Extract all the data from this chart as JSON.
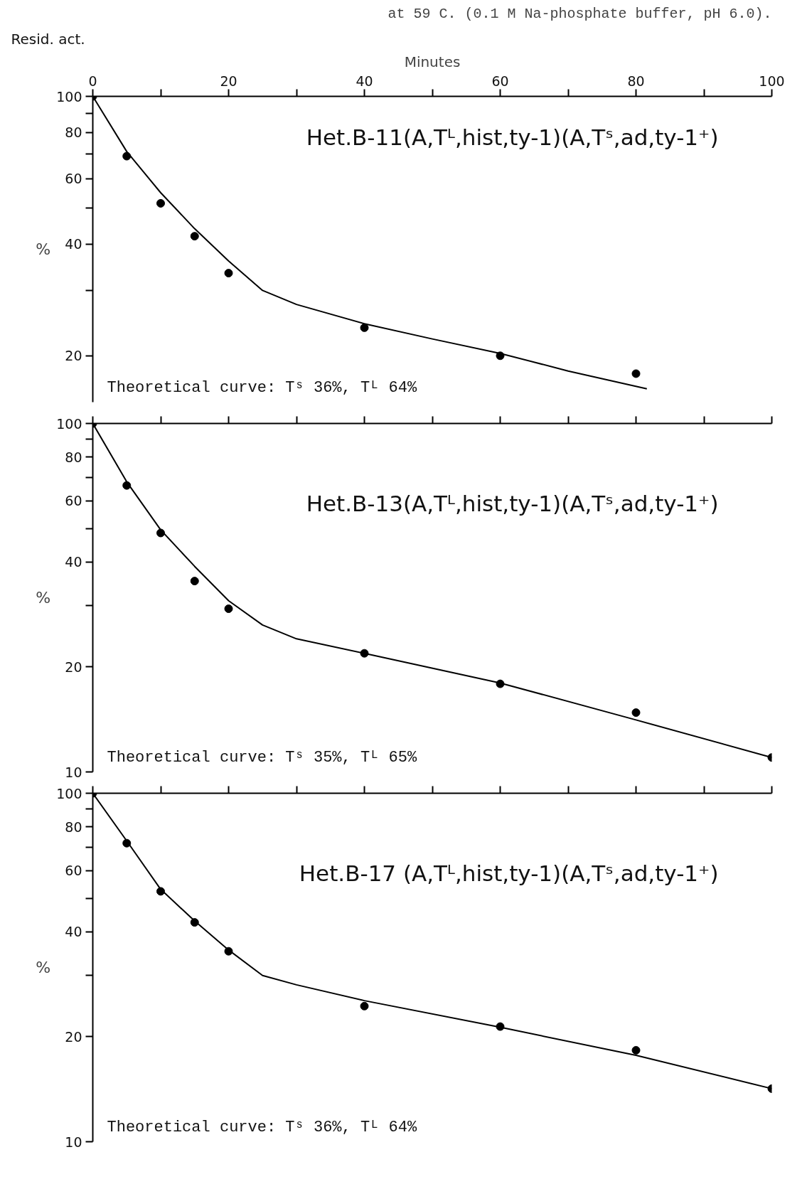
{
  "chart_data": [
    {
      "type": "scatter",
      "title": "at 59 C. (0.1 M Na-phosphate buffer, pH 6.0).",
      "xlabel": "Minutes",
      "ylabel": "%",
      "log": "y",
      "grid": false,
      "xlim": [
        0,
        100
      ],
      "xticks": [
        0,
        {
          "value": 10,
          "label": null
        },
        20,
        {
          "value": 30,
          "label": null
        },
        40,
        {
          "value": 50,
          "label": null
        },
        60,
        {
          "value": 70,
          "label": null
        },
        80,
        {
          "value": 90,
          "label": null
        },
        100
      ],
      "ylim": [
        15,
        100
      ],
      "yticks": [
        100,
        {
          "value": 90,
          "label": null
        },
        80,
        {
          "value": 70,
          "label": null
        },
        60,
        {
          "value": 50,
          "label": null
        },
        40,
        {
          "value": 30,
          "label": null
        },
        20
      ],
      "series": [
        {
          "type": "scatter",
          "marker": "circle",
          "color": "#000000",
          "x": [
            0,
            5,
            10,
            15,
            20,
            40,
            60,
            80
          ],
          "values": [
            100,
            69,
            51.5,
            42,
            33.4,
            23.8,
            20,
            17.9
          ]
        },
        {
          "type": "line",
          "marker": "none",
          "color": "#000000",
          "x": [
            0,
            5,
            10,
            15,
            20,
            25,
            30,
            40,
            50,
            60,
            70,
            81.6
          ],
          "values": [
            100,
            71,
            55,
            44,
            36,
            30,
            27.5,
            24.4,
            22.2,
            20.3,
            18.2,
            16.3
          ]
        }
      ],
      "annotations": [
        "Resid. act.",
        "Het.B-11(A,Tᴸ,hist,ty-1)(A,Tˢ,ad,ty-1⁺)",
        "Theoretical curve: Tˢ 36%, Tᴸ 64%"
      ]
    },
    {
      "type": "scatter",
      "ylabel": "%",
      "log": "y",
      "grid": false,
      "tick_labels": "y",
      "xlim": [
        0,
        100
      ],
      "xticks": [
        {
          "value": 0,
          "label": null
        },
        {
          "value": 10,
          "label": null
        },
        {
          "value": 20,
          "label": null
        },
        {
          "value": 30,
          "label": null
        },
        {
          "value": 40,
          "label": null
        },
        {
          "value": 50,
          "label": null
        },
        {
          "value": 60,
          "label": null
        },
        {
          "value": 70,
          "label": null
        },
        {
          "value": 80,
          "label": null
        },
        {
          "value": 90,
          "label": null
        },
        {
          "value": 100,
          "label": null
        }
      ],
      "ylim": [
        10,
        100
      ],
      "yticks": [
        100,
        {
          "value": 90,
          "label": null
        },
        80,
        {
          "value": 70,
          "label": null
        },
        60,
        {
          "value": 50,
          "label": null
        },
        40,
        {
          "value": 30,
          "label": null
        },
        20,
        10
      ],
      "series": [
        {
          "type": "scatter",
          "marker": "circle",
          "color": "#000000",
          "x": [
            0,
            5,
            10,
            15,
            20,
            40,
            60,
            80,
            100
          ],
          "values": [
            100,
            66.4,
            48.5,
            35.3,
            29.4,
            21.9,
            17.9,
            14.8,
            11
          ]
        },
        {
          "type": "line",
          "marker": "none",
          "color": "#000000",
          "x": [
            0,
            5,
            10,
            15,
            20,
            25,
            30,
            40,
            60,
            80,
            100
          ],
          "values": [
            100,
            68,
            49.5,
            38.9,
            31,
            26.4,
            24.1,
            21.9,
            18,
            14.1,
            11
          ]
        }
      ],
      "annotations": [
        "Het.B-13(A,Tᴸ,hist,ty-1)(A,Tˢ,ad,ty-1⁺)",
        "Theoretical curve: Tˢ 35%, Tᴸ 65%"
      ]
    },
    {
      "type": "scatter",
      "ylabel": "%",
      "log": "y",
      "grid": false,
      "tick_labels": "y",
      "xlim": [
        0,
        100
      ],
      "xticks": [
        {
          "value": 0,
          "label": null
        },
        {
          "value": 10,
          "label": null
        },
        {
          "value": 20,
          "label": null
        },
        {
          "value": 30,
          "label": null
        },
        {
          "value": 40,
          "label": null
        },
        {
          "value": 50,
          "label": null
        },
        {
          "value": 60,
          "label": null
        },
        {
          "value": 70,
          "label": null
        },
        {
          "value": 80,
          "label": null
        },
        {
          "value": 90,
          "label": null
        },
        {
          "value": 100,
          "label": null
        }
      ],
      "ylim": [
        10,
        100
      ],
      "yticks": [
        100,
        {
          "value": 90,
          "label": null
        },
        80,
        {
          "value": 70,
          "label": null
        },
        60,
        {
          "value": 50,
          "label": null
        },
        40,
        {
          "value": 30,
          "label": null
        },
        20,
        10
      ],
      "series": [
        {
          "type": "scatter",
          "marker": "circle",
          "color": "#000000",
          "x": [
            0,
            5,
            10,
            15,
            20,
            40,
            60,
            80,
            100
          ],
          "values": [
            100,
            71.9,
            52.3,
            42.6,
            35.2,
            24.5,
            21.4,
            18.3,
            14.2
          ]
        },
        {
          "type": "line",
          "marker": "none",
          "color": "#000000",
          "x": [
            0,
            5,
            10,
            15,
            20,
            25,
            30,
            40,
            60,
            80,
            100
          ],
          "values": [
            100,
            73,
            53,
            43,
            35.5,
            30,
            28.2,
            25.4,
            21.3,
            17.7,
            14.2
          ]
        }
      ],
      "annotations": [
        "Het.B-17 (A,Tᴸ,hist,ty-1)(A,Tˢ,ad,ty-1⁺)",
        "Theoretical curve: Tˢ 36%, Tᴸ 64%"
      ]
    }
  ]
}
